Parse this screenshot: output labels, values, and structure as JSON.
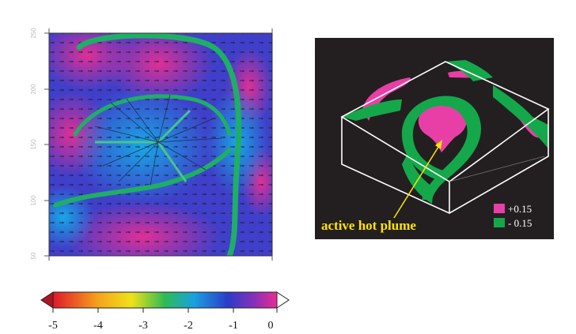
{
  "left_panel": {
    "axis_ticks": [
      "50",
      "100",
      "150",
      "200",
      "250"
    ],
    "colorbar": {
      "ticks": [
        "-5",
        "-4",
        "-3",
        "-2",
        "-1",
        "0"
      ],
      "colors": [
        "#e0182a",
        "#f4a21c",
        "#efe21a",
        "#2dbb55",
        "#1aa0e0",
        "#2b3cc8",
        "#8a2fb8",
        "#ea2c94"
      ]
    }
  },
  "right_panel": {
    "background_color": "#231f20",
    "annotation": "active hot plume",
    "legend": [
      {
        "label": "+0.15",
        "color": "#e83fa6"
      },
      {
        "label": "- 0.15",
        "color": "#14a84a"
      }
    ]
  }
}
